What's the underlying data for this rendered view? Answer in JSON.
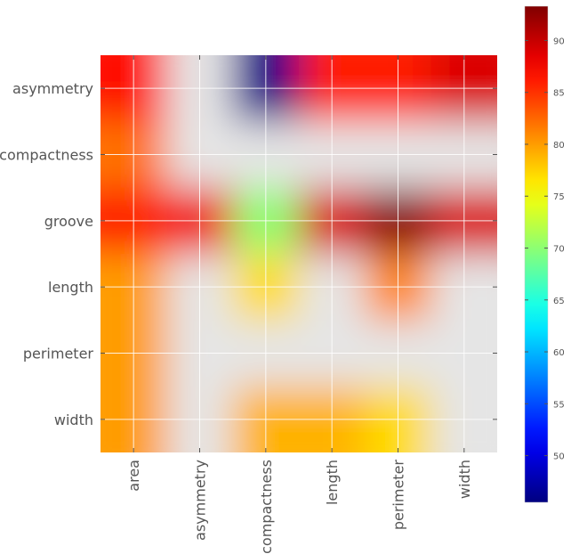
{
  "chart_data": {
    "type": "heatmap",
    "title": "",
    "xlabel": "",
    "ylabel": "",
    "x_categories": [
      "area",
      "asymmetry",
      "compactness",
      "length",
      "perimeter",
      "width"
    ],
    "y_categories": [
      "asymmetry",
      "compactness",
      "groove",
      "length",
      "perimeter",
      "width"
    ],
    "values": [
      [
        87,
        null,
        46,
        86,
        86,
        89
      ],
      [
        82,
        null,
        null,
        null,
        null,
        null
      ],
      [
        86,
        88,
        70,
        89,
        93,
        89
      ],
      [
        80,
        null,
        77,
        null,
        81,
        null
      ],
      [
        80,
        null,
        null,
        null,
        null,
        null
      ],
      [
        80,
        null,
        79,
        79,
        77,
        null
      ]
    ],
    "missing_color": "#e5e5e5",
    "interpolation": "bicubic",
    "colormap": "jet",
    "colorbar": {
      "min": 45.5,
      "max": 93.3,
      "ticks": [
        50,
        55,
        60,
        65,
        70,
        75,
        80,
        85,
        90
      ]
    },
    "grid": true,
    "legend": "none"
  }
}
